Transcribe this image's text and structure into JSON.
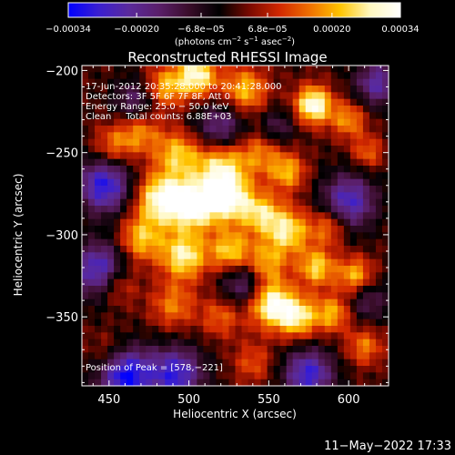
{
  "chart_data": {
    "type": "heatmap",
    "title": "Reconstructed RHESSI Image",
    "xlabel": "Heliocentric X (arcsec)",
    "ylabel": "Heliocentric Y (arcsec)",
    "xlim": [
      433,
      625
    ],
    "ylim": [
      -392,
      -197
    ],
    "xticks": [
      450,
      500,
      550,
      600
    ],
    "xtick_labels": [
      "450",
      "500",
      "550",
      "600"
    ],
    "yticks": [
      -200,
      -250,
      -300,
      -350
    ],
    "ytick_labels": [
      "−200",
      "−250",
      "−300",
      "−350"
    ],
    "colorbar": {
      "range": [
        -0.00034,
        0.00034
      ],
      "ticks": [
        -0.00034,
        -0.0002,
        -6.8e-05,
        6.8e-05,
        0.0002,
        0.00034
      ],
      "tick_labels": [
        "−0.00034",
        "−0.00020",
        "−6.8e−05",
        "6.8e−05",
        "0.00020",
        "0.00034"
      ],
      "colors": [
        "#0000ff",
        "#3a1fd0",
        "#5a2a9c",
        "#5a1f6a",
        "#3a0d2a",
        "#000000",
        "#7a0a00",
        "#d22800",
        "#f07000",
        "#ffc400",
        "#fff8c0",
        "#ffffff"
      ]
    },
    "colorbar_unit": {
      "prefix": "(photons cm",
      "exp1": "−2",
      "mid1": " s",
      "exp2": "−1",
      "mid2": " asec",
      "exp3": "−2",
      "suffix": ")"
    },
    "annotations": [
      "17-Jun-2012 20:35:28.000 to 20:41:28.000",
      "Detectors: 3F 5F 6F 7F 8F, Att 0",
      "Energy Range: 25.0 − 50.0 keV",
      "Clean     Total counts: 6.88E+03"
    ],
    "peak_label": "Position of Peak = [578,−221]",
    "peak": [
      578,
      -221
    ],
    "timestamp": "11−May−2022 17:33",
    "sources": [
      {
        "x": 453,
        "y": -246,
        "s": 9,
        "a": 0.00016
      },
      {
        "x": 485,
        "y": -210,
        "s": 9,
        "a": 0.0002
      },
      {
        "x": 505,
        "y": -203,
        "s": 9,
        "a": 0.0003
      },
      {
        "x": 535,
        "y": -212,
        "s": 10,
        "a": 0.00022
      },
      {
        "x": 578,
        "y": -221,
        "s": 8,
        "a": 0.00034
      },
      {
        "x": 600,
        "y": -230,
        "s": 8,
        "a": 0.00018
      },
      {
        "x": 612,
        "y": -250,
        "s": 7,
        "a": 0.00014
      },
      {
        "x": 470,
        "y": -238,
        "s": 9,
        "a": 0.00016
      },
      {
        "x": 493,
        "y": -251,
        "s": 10,
        "a": 0.00022
      },
      {
        "x": 520,
        "y": -258,
        "s": 11,
        "a": 0.00026
      },
      {
        "x": 545,
        "y": -250,
        "s": 10,
        "a": 0.00016
      },
      {
        "x": 562,
        "y": -262,
        "s": 8,
        "a": 0.0002
      },
      {
        "x": 482,
        "y": -278,
        "s": 11,
        "a": 0.0003
      },
      {
        "x": 503,
        "y": -282,
        "s": 11,
        "a": 0.00033
      },
      {
        "x": 525,
        "y": -278,
        "s": 10,
        "a": 0.0003
      },
      {
        "x": 545,
        "y": -287,
        "s": 9,
        "a": 0.00022
      },
      {
        "x": 562,
        "y": -298,
        "s": 10,
        "a": 0.00026
      },
      {
        "x": 588,
        "y": -295,
        "s": 8,
        "a": 0.00018
      },
      {
        "x": 470,
        "y": -303,
        "s": 10,
        "a": 0.00022
      },
      {
        "x": 497,
        "y": -313,
        "s": 10,
        "a": 0.00028
      },
      {
        "x": 526,
        "y": -310,
        "s": 9,
        "a": 0.00024
      },
      {
        "x": 548,
        "y": -318,
        "s": 9,
        "a": 0.0002
      },
      {
        "x": 580,
        "y": -320,
        "s": 8,
        "a": 0.00024
      },
      {
        "x": 604,
        "y": -325,
        "s": 8,
        "a": 0.00022
      },
      {
        "x": 455,
        "y": -330,
        "s": 9,
        "a": 0.00018
      },
      {
        "x": 490,
        "y": -343,
        "s": 10,
        "a": 0.00016
      },
      {
        "x": 520,
        "y": -350,
        "s": 9,
        "a": 0.00014
      },
      {
        "x": 551,
        "y": -342,
        "s": 10,
        "a": 0.00032
      },
      {
        "x": 568,
        "y": -350,
        "s": 9,
        "a": 0.00026
      },
      {
        "x": 590,
        "y": -348,
        "s": 8,
        "a": 0.0002
      },
      {
        "x": 610,
        "y": -368,
        "s": 8,
        "a": 0.00016
      },
      {
        "x": 540,
        "y": -378,
        "s": 9,
        "a": 0.00012
      },
      {
        "x": 450,
        "y": -372,
        "s": 9,
        "a": 0.0001
      },
      {
        "x": 447,
        "y": -270,
        "s": 12,
        "a": -0.0003
      },
      {
        "x": 445,
        "y": -322,
        "s": 12,
        "a": -0.0003
      },
      {
        "x": 460,
        "y": -385,
        "s": 12,
        "a": -0.00034
      },
      {
        "x": 492,
        "y": -385,
        "s": 12,
        "a": -0.00028
      },
      {
        "x": 535,
        "y": -330,
        "s": 10,
        "a": -0.0002
      },
      {
        "x": 520,
        "y": -235,
        "s": 11,
        "a": -0.0002
      },
      {
        "x": 600,
        "y": -280,
        "s": 12,
        "a": -0.00026
      },
      {
        "x": 618,
        "y": -208,
        "s": 10,
        "a": -0.00022
      },
      {
        "x": 575,
        "y": -385,
        "s": 11,
        "a": -0.00028
      },
      {
        "x": 612,
        "y": -340,
        "s": 9,
        "a": -0.00014
      },
      {
        "x": 466,
        "y": -218,
        "s": 9,
        "a": -0.00016
      },
      {
        "x": 555,
        "y": -235,
        "s": 8,
        "a": -0.00014
      }
    ]
  }
}
